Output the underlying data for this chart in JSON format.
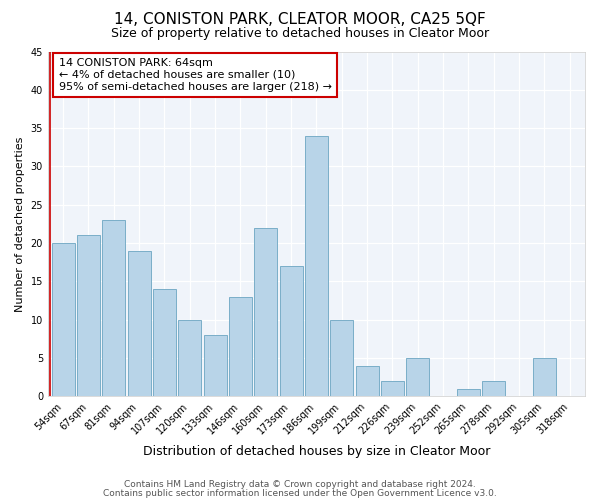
{
  "title": "14, CONISTON PARK, CLEATOR MOOR, CA25 5QF",
  "subtitle": "Size of property relative to detached houses in Cleator Moor",
  "xlabel": "Distribution of detached houses by size in Cleator Moor",
  "ylabel": "Number of detached properties",
  "bar_labels": [
    "54sqm",
    "67sqm",
    "81sqm",
    "94sqm",
    "107sqm",
    "120sqm",
    "133sqm",
    "146sqm",
    "160sqm",
    "173sqm",
    "186sqm",
    "199sqm",
    "212sqm",
    "226sqm",
    "239sqm",
    "252sqm",
    "265sqm",
    "278sqm",
    "292sqm",
    "305sqm",
    "318sqm"
  ],
  "bar_values": [
    20,
    21,
    23,
    19,
    14,
    10,
    8,
    13,
    22,
    17,
    34,
    10,
    4,
    2,
    5,
    0,
    1,
    2,
    0,
    5,
    0
  ],
  "bar_color": "#b8d4e8",
  "bar_edge_color": "#7aaec8",
  "grid_color": "#d0d8e8",
  "annotation_text": "14 CONISTON PARK: 64sqm\n← 4% of detached houses are smaller (10)\n95% of semi-detached houses are larger (218) →",
  "annotation_box_color": "#ffffff",
  "annotation_box_edge": "#cc0000",
  "marker_line_color": "#cc0000",
  "ylim": [
    0,
    45
  ],
  "yticks": [
    0,
    5,
    10,
    15,
    20,
    25,
    30,
    35,
    40,
    45
  ],
  "footer_line1": "Contains HM Land Registry data © Crown copyright and database right 2024.",
  "footer_line2": "Contains public sector information licensed under the Open Government Licence v3.0.",
  "title_fontsize": 11,
  "subtitle_fontsize": 9,
  "xlabel_fontsize": 9,
  "ylabel_fontsize": 8,
  "tick_fontsize": 7,
  "annotation_fontsize": 8,
  "footer_fontsize": 6.5,
  "bg_color": "#f0f4fa"
}
